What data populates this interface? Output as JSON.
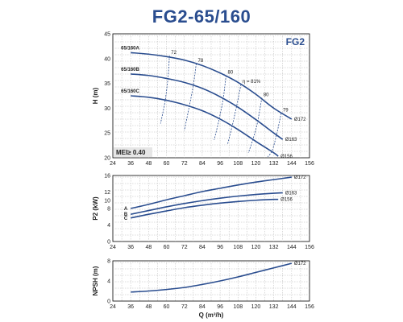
{
  "title": "FG2-65/160",
  "chart_data": [
    {
      "type": "line",
      "panel": "head",
      "tag": "FG2",
      "mei": "MEI≥ 0.40",
      "xlim": [
        24,
        156
      ],
      "ylim": [
        20,
        45
      ],
      "xticks": [
        24,
        36,
        48,
        60,
        72,
        84,
        96,
        108,
        120,
        132,
        144,
        156
      ],
      "yticks": [
        20,
        25,
        30,
        35,
        40,
        45
      ],
      "ylabel": "H (m)",
      "series": [
        {
          "name": "65/160A",
          "end_label": "Ø172",
          "x": [
            36,
            48,
            60,
            72,
            84,
            96,
            108,
            120,
            132,
            144
          ],
          "y": [
            41.2,
            40.9,
            40.4,
            39.7,
            38.6,
            37.1,
            35.2,
            32.8,
            30.0,
            27.8
          ]
        },
        {
          "name": "65/160B",
          "end_label": "Ø163",
          "x": [
            36,
            48,
            60,
            72,
            84,
            96,
            108,
            120,
            132,
            138
          ],
          "y": [
            36.9,
            36.6,
            36.0,
            35.2,
            34.0,
            32.3,
            30.2,
            27.7,
            25.0,
            23.7
          ]
        },
        {
          "name": "65/160C",
          "end_label": "Ø156",
          "x": [
            36,
            48,
            60,
            72,
            84,
            96,
            108,
            120,
            132,
            135
          ],
          "y": [
            32.5,
            32.2,
            31.6,
            30.7,
            29.5,
            27.8,
            25.7,
            23.3,
            21.0,
            20.3
          ]
        }
      ],
      "efficiency_curves": [
        {
          "label": "72",
          "x": [
            62,
            61,
            59,
            56
          ],
          "y": [
            40.6,
            36.1,
            31.3,
            26.9
          ]
        },
        {
          "label": "78",
          "x": [
            80,
            78,
            75,
            72
          ],
          "y": [
            39.0,
            34.6,
            29.9,
            25.5
          ]
        },
        {
          "label": "80",
          "x": [
            100,
            98,
            95,
            92
          ],
          "y": [
            36.6,
            31.8,
            27.3,
            23.6
          ]
        },
        {
          "label": "81%",
          "prefix": "η = ",
          "x": [
            110,
            107,
            104,
            101
          ],
          "y": [
            34.8,
            30.3,
            26.3,
            22.7
          ]
        },
        {
          "label": "80",
          "x": [
            124,
            121,
            118,
            115
          ],
          "y": [
            32.1,
            27.0,
            23.7,
            21.0
          ]
        },
        {
          "label": "79",
          "x": [
            137,
            134,
            131,
            128
          ],
          "y": [
            29.0,
            24.8,
            21.5,
            20.2
          ]
        }
      ]
    },
    {
      "type": "line",
      "panel": "power",
      "xlim": [
        24,
        156
      ],
      "ylim": [
        0,
        16
      ],
      "xticks": [
        24,
        36,
        48,
        60,
        72,
        84,
        96,
        108,
        120,
        132,
        144,
        156
      ],
      "yticks": [
        0,
        4,
        8,
        10,
        12,
        16
      ],
      "ylabel": "P2 (kW)",
      "series": [
        {
          "name": "A",
          "end_label": "Ø172",
          "x": [
            36,
            48,
            60,
            72,
            84,
            96,
            108,
            120,
            132,
            144
          ],
          "y": [
            8.0,
            9.0,
            10.1,
            11.1,
            12.1,
            12.9,
            13.7,
            14.4,
            15.0,
            15.6
          ]
        },
        {
          "name": "B",
          "end_label": "Ø163",
          "x": [
            36,
            48,
            60,
            72,
            84,
            96,
            108,
            120,
            132,
            138
          ],
          "y": [
            6.6,
            7.5,
            8.4,
            9.2,
            9.9,
            10.5,
            11.0,
            11.4,
            11.7,
            11.8
          ]
        },
        {
          "name": "C",
          "end_label": "Ø156",
          "x": [
            36,
            48,
            60,
            72,
            84,
            96,
            108,
            120,
            132,
            135
          ],
          "y": [
            5.7,
            6.6,
            7.4,
            8.2,
            8.8,
            9.3,
            9.7,
            10.0,
            10.2,
            10.2
          ]
        }
      ]
    },
    {
      "type": "line",
      "panel": "npsh",
      "xlim": [
        24,
        156
      ],
      "ylim": [
        0,
        8
      ],
      "xticks": [
        24,
        36,
        48,
        60,
        72,
        84,
        96,
        108,
        120,
        132,
        144,
        156
      ],
      "yticks": [
        0,
        4,
        8
      ],
      "ylabel": "NPSH (m)",
      "xlabel": "Q (m³/h)",
      "series": [
        {
          "name": "",
          "end_label": "Ø172",
          "x": [
            36,
            48,
            60,
            72,
            84,
            96,
            108,
            120,
            132,
            144
          ],
          "y": [
            1.8,
            2.0,
            2.3,
            2.7,
            3.3,
            4.0,
            4.8,
            5.7,
            6.6,
            7.5
          ]
        }
      ]
    }
  ]
}
